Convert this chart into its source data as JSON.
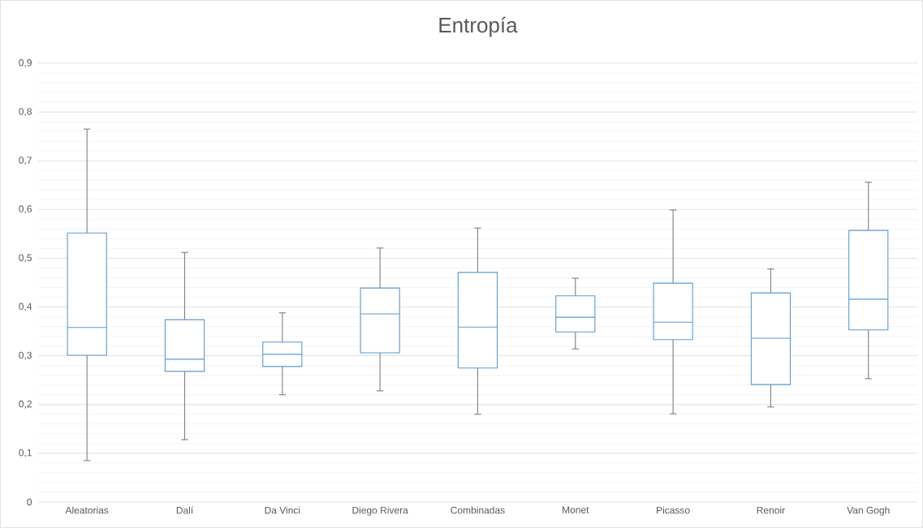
{
  "chart_data": {
    "type": "box",
    "title": "Entropía",
    "categories": [
      "Aleatorias",
      "Dalí",
      "Da Vinci",
      "Diego Rivera",
      "Combinadas",
      "Monet",
      "Picasso",
      "Renoir",
      "Van Gogh"
    ],
    "series": [
      {
        "color": "#5b9bd5",
        "boxes": [
          {
            "low": 0.085,
            "q1": 0.301,
            "median": 0.358,
            "q3": 0.552,
            "high": 0.765
          },
          {
            "low": 0.128,
            "q1": 0.268,
            "median": 0.293,
            "q3": 0.374,
            "high": 0.512
          },
          {
            "low": 0.22,
            "q1": 0.278,
            "median": 0.303,
            "q3": 0.328,
            "high": 0.388
          },
          {
            "low": 0.228,
            "q1": 0.306,
            "median": 0.386,
            "q3": 0.439,
            "high": 0.521
          },
          {
            "low": 0.18,
            "q1": 0.275,
            "median": 0.359,
            "q3": 0.471,
            "high": 0.562
          },
          {
            "low": 0.314,
            "q1": 0.349,
            "median": 0.379,
            "q3": 0.423,
            "high": 0.459
          },
          {
            "low": 0.181,
            "q1": 0.333,
            "median": 0.369,
            "q3": 0.449,
            "high": 0.599
          },
          {
            "low": 0.195,
            "q1": 0.241,
            "median": 0.336,
            "q3": 0.429,
            "high": 0.478
          },
          {
            "low": 0.253,
            "q1": 0.353,
            "median": 0.416,
            "q3": 0.557,
            "high": 0.656
          }
        ]
      }
    ],
    "ylim": [
      0,
      0.9
    ],
    "yticks": [
      {
        "value": 0,
        "label": "0"
      },
      {
        "value": 0.02,
        "label": null
      },
      {
        "value": 0.04,
        "label": null
      },
      {
        "value": 0.06,
        "label": null
      },
      {
        "value": 0.08,
        "label": null
      },
      {
        "value": 0.1,
        "label": "0,1"
      },
      {
        "value": 0.12,
        "label": null
      },
      {
        "value": 0.14,
        "label": null
      },
      {
        "value": 0.16,
        "label": null
      },
      {
        "value": 0.18,
        "label": null
      },
      {
        "value": 0.2,
        "label": "0,2"
      },
      {
        "value": 0.22,
        "label": null
      },
      {
        "value": 0.24,
        "label": null
      },
      {
        "value": 0.26,
        "label": null
      },
      {
        "value": 0.28,
        "label": null
      },
      {
        "value": 0.3,
        "label": "0,3"
      },
      {
        "value": 0.32,
        "label": null
      },
      {
        "value": 0.34,
        "label": null
      },
      {
        "value": 0.36,
        "label": null
      },
      {
        "value": 0.38,
        "label": null
      },
      {
        "value": 0.4,
        "label": "0,4"
      },
      {
        "value": 0.42,
        "label": null
      },
      {
        "value": 0.44,
        "label": null
      },
      {
        "value": 0.46,
        "label": null
      },
      {
        "value": 0.48,
        "label": null
      },
      {
        "value": 0.5,
        "label": "0,5"
      },
      {
        "value": 0.52,
        "label": null
      },
      {
        "value": 0.54,
        "label": null
      },
      {
        "value": 0.56,
        "label": null
      },
      {
        "value": 0.58,
        "label": null
      },
      {
        "value": 0.6,
        "label": "0,6"
      },
      {
        "value": 0.62,
        "label": null
      },
      {
        "value": 0.64,
        "label": null
      },
      {
        "value": 0.66,
        "label": null
      },
      {
        "value": 0.68,
        "label": null
      },
      {
        "value": 0.7,
        "label": "0,7"
      },
      {
        "value": 0.72,
        "label": null
      },
      {
        "value": 0.74,
        "label": null
      },
      {
        "value": 0.76,
        "label": null
      },
      {
        "value": 0.78,
        "label": null
      },
      {
        "value": 0.8,
        "label": "0,8"
      },
      {
        "value": 0.82,
        "label": null
      },
      {
        "value": 0.84,
        "label": null
      },
      {
        "value": 0.86,
        "label": null
      },
      {
        "value": 0.88,
        "label": null
      },
      {
        "value": 0.9,
        "label": "0,9"
      }
    ],
    "grid": "y"
  }
}
